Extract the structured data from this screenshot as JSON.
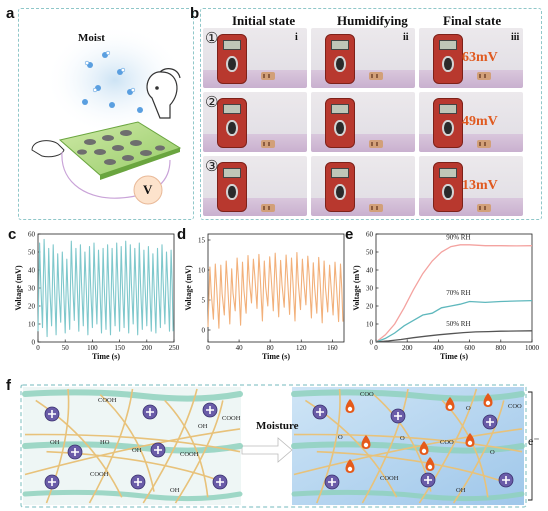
{
  "panels": {
    "a": {
      "letter": "a",
      "moist_label": "Moist",
      "voltmeter_label": "V"
    },
    "b": {
      "letter": "b",
      "columns": [
        "Initial state",
        "Humidifying",
        "Final state"
      ],
      "rows": [
        {
          "index": "①",
          "final_voltage": "63mV",
          "roman": [
            "i",
            "ii",
            "iii"
          ]
        },
        {
          "index": "②",
          "final_voltage": "49mV"
        },
        {
          "index": "③",
          "final_voltage": "13mV"
        }
      ]
    },
    "f": {
      "letter": "f",
      "arrow_label": "Moisture",
      "electron_label": "e⁻"
    }
  },
  "chart_data": [
    {
      "panel": "c",
      "type": "line",
      "xlabel": "Time (s)",
      "ylabel": "Voltage (mV)",
      "xlim": [
        0,
        250
      ],
      "ylim": [
        0,
        60
      ],
      "xticks": [
        0,
        50,
        100,
        150,
        200,
        250
      ],
      "yticks": [
        0,
        10,
        20,
        30,
        40,
        50,
        60
      ],
      "color": "#7fc8cc",
      "cycles": 30,
      "peaks": [
        55,
        57,
        52,
        54,
        49,
        50,
        46,
        56,
        52,
        54,
        50,
        53,
        55,
        51,
        52,
        54,
        52,
        55,
        53,
        56,
        54,
        52,
        55,
        51,
        53,
        49,
        52,
        54,
        50,
        51
      ],
      "troughs": [
        6,
        8,
        3,
        9,
        4,
        11,
        5,
        7,
        12,
        6,
        9,
        4,
        8,
        10,
        5,
        7,
        4,
        9,
        6,
        8,
        5,
        10,
        4,
        7,
        9,
        6,
        5,
        8,
        10,
        6
      ]
    },
    {
      "panel": "d",
      "type": "line",
      "xlabel": "Time (s)",
      "ylabel": "Voltage (mV)",
      "xlim": [
        0,
        175
      ],
      "ylim": [
        -2,
        16
      ],
      "xticks": [
        0,
        40,
        80,
        120,
        160
      ],
      "yticks": [
        0,
        5,
        10,
        15
      ],
      "color": "#f2b07a",
      "cycles": 25,
      "peaks": [
        10.5,
        11,
        10.8,
        11.5,
        10.2,
        12,
        11.3,
        12.4,
        11.8,
        12.6,
        11.5,
        12.2,
        12.8,
        11.6,
        12.5,
        12,
        12.9,
        11.8,
        12.3,
        11.2,
        12.1,
        11.5,
        10.8,
        11.3,
        11
      ],
      "troughs": [
        0.5,
        1.8,
        0.3,
        2.5,
        1,
        3.2,
        0.8,
        2.8,
        4.5,
        3.6,
        1.5,
        4,
        3.2,
        2.2,
        3.8,
        2.6,
        1.5,
        3.4,
        4.2,
        2,
        2.8,
        1.2,
        3,
        2.5,
        1.4
      ]
    },
    {
      "panel": "e",
      "type": "line",
      "xlabel": "Time (s)",
      "ylabel": "Voltage (mV)",
      "xlim": [
        0,
        1000
      ],
      "ylim": [
        0,
        60
      ],
      "xticks": [
        0,
        200,
        400,
        600,
        800,
        1000
      ],
      "yticks": [
        0,
        10,
        20,
        30,
        40,
        50,
        60
      ],
      "series": [
        {
          "name": "90% RH",
          "color": "#f4a3a0",
          "x": [
            0,
            60,
            120,
            180,
            240,
            300,
            360,
            420,
            480,
            540,
            600,
            700,
            800,
            900,
            1000
          ],
          "y": [
            0,
            4,
            10,
            19,
            29,
            38,
            45,
            50,
            53,
            54,
            54,
            53.5,
            53.5,
            53.4,
            53.5
          ]
        },
        {
          "name": "70% RH",
          "color": "#5fb8bd",
          "x": [
            0,
            60,
            120,
            180,
            240,
            300,
            360,
            420,
            480,
            540,
            600,
            700,
            800,
            900,
            1000
          ],
          "y": [
            0,
            2,
            5,
            9,
            12,
            15,
            16,
            19,
            20,
            21,
            22.5,
            22,
            22.5,
            22.8,
            23
          ]
        },
        {
          "name": "50% RH",
          "color": "#555555",
          "x": [
            0,
            80,
            160,
            240,
            320,
            400,
            480,
            560,
            640,
            720,
            800,
            900,
            1000
          ],
          "y": [
            0,
            0.6,
            1.4,
            2.4,
            3.2,
            4,
            4.6,
            5.2,
            5.6,
            5.8,
            6,
            6.1,
            6.2
          ]
        }
      ]
    }
  ],
  "colors": {
    "frame": "#8fc7c9",
    "fiber_yellow": "#e8c27a",
    "fiber_green": "#8fd1bd",
    "ion_purple": "#6a5ca8",
    "proton_orange": "#e55a1b"
  }
}
